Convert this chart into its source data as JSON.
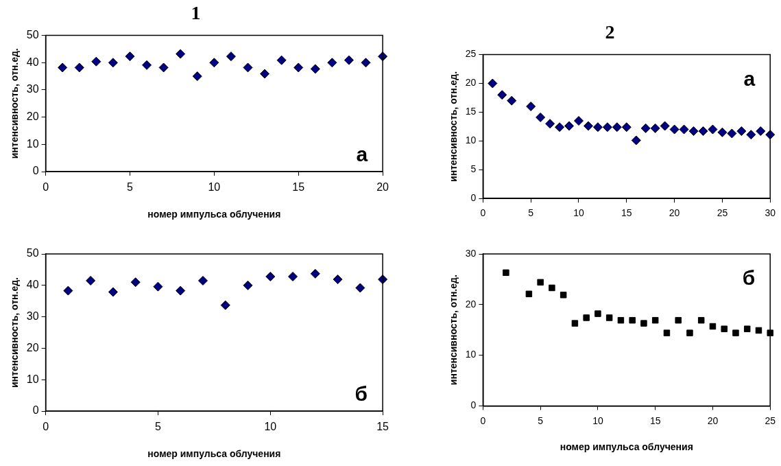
{
  "chart_data": [
    {
      "type": "scatter",
      "title": "1",
      "xlabel": "номер импульса облучения",
      "ylabel": "интенсивность, отн.ед.",
      "annotations": [
        "а"
      ],
      "marker": "diamond",
      "grid": false,
      "xlim": [
        0,
        20
      ],
      "xticks": [
        0,
        5,
        10,
        15,
        20
      ],
      "ylim": [
        0,
        50
      ],
      "yticks": [
        0,
        10,
        20,
        30,
        40,
        50
      ],
      "series": [
        {
          "color": "#000080",
          "x": [
            1,
            2,
            3,
            4,
            5,
            6,
            7,
            8,
            9,
            10,
            11,
            12,
            13,
            14,
            15,
            16,
            17,
            18,
            19,
            20
          ],
          "values": [
            38.2,
            38.2,
            40.4,
            40,
            42.3,
            39.1,
            38.2,
            43.2,
            35,
            40,
            42.3,
            38.2,
            35.9,
            40.9,
            38.2,
            37.7,
            40,
            40.9,
            40,
            42.3
          ]
        }
      ]
    },
    {
      "type": "scatter",
      "title": "2",
      "ylabel": "интенсивность, отн.ед.",
      "annotations": [
        "а"
      ],
      "marker": "diamond",
      "grid": false,
      "xlim": [
        0,
        30
      ],
      "xticks": [
        0,
        5,
        10,
        15,
        20,
        25,
        30
      ],
      "ylim": [
        0,
        25
      ],
      "yticks": [
        0,
        5,
        10,
        15,
        20,
        25
      ],
      "series": [
        {
          "color": "#000080",
          "x": [
            1,
            2,
            3,
            5,
            6,
            7,
            8,
            9,
            10,
            11,
            12,
            13,
            14,
            15,
            16,
            17,
            18,
            19,
            20,
            21,
            22,
            23,
            24,
            25,
            26,
            27,
            28,
            29,
            30
          ],
          "values": [
            20,
            18,
            17,
            16,
            14.1,
            13,
            12.4,
            12.6,
            13.5,
            12.6,
            12.4,
            12.4,
            12.4,
            12.4,
            10.1,
            12.2,
            12.2,
            12.6,
            12,
            12,
            11.7,
            11.7,
            12,
            11.5,
            11.3,
            11.7,
            11.1,
            11.7,
            11.1
          ]
        }
      ]
    },
    {
      "type": "scatter",
      "xlabel": "номер импульса облучения",
      "ylabel": "интенсивность, отн.ед.",
      "annotations": [
        "б"
      ],
      "marker": "diamond",
      "grid": false,
      "xlim": [
        0,
        15
      ],
      "xticks": [
        0,
        5,
        10,
        15
      ],
      "ylim": [
        0,
        50
      ],
      "yticks": [
        0,
        10,
        20,
        30,
        40,
        50
      ],
      "series": [
        {
          "color": "#000080",
          "x": [
            1,
            2,
            3,
            4,
            5,
            6,
            7,
            8,
            9,
            10,
            11,
            12,
            13,
            14,
            15
          ],
          "values": [
            38.3,
            41.5,
            37.9,
            41,
            39.6,
            38.3,
            41.5,
            33.7,
            40,
            42.8,
            42.8,
            43.7,
            41.9,
            39.2,
            41.9
          ]
        }
      ]
    },
    {
      "type": "scatter",
      "xlabel": "номер импульса облучения",
      "ylabel": "интенсивность, отн.ед.",
      "annotations": [
        "б"
      ],
      "marker": "square",
      "grid": false,
      "xlim": [
        0,
        25
      ],
      "xticks": [
        0,
        5,
        10,
        15,
        20,
        25
      ],
      "ylim": [
        0,
        30
      ],
      "yticks": [
        0,
        10,
        20,
        30
      ],
      "series": [
        {
          "color": "#000000",
          "x": [
            2,
            4,
            5,
            6,
            7,
            8,
            9,
            10,
            11,
            12,
            13,
            14,
            15,
            16,
            17,
            18,
            19,
            20,
            21,
            22,
            23,
            24,
            25
          ],
          "values": [
            26.3,
            22.1,
            24.4,
            23.3,
            21.9,
            16.3,
            17.4,
            18.2,
            17.4,
            16.9,
            16.9,
            16.3,
            16.9,
            14.4,
            16.9,
            14.4,
            16.9,
            15.7,
            15.2,
            14.4,
            15.2,
            14.9,
            14.4
          ]
        }
      ]
    }
  ]
}
